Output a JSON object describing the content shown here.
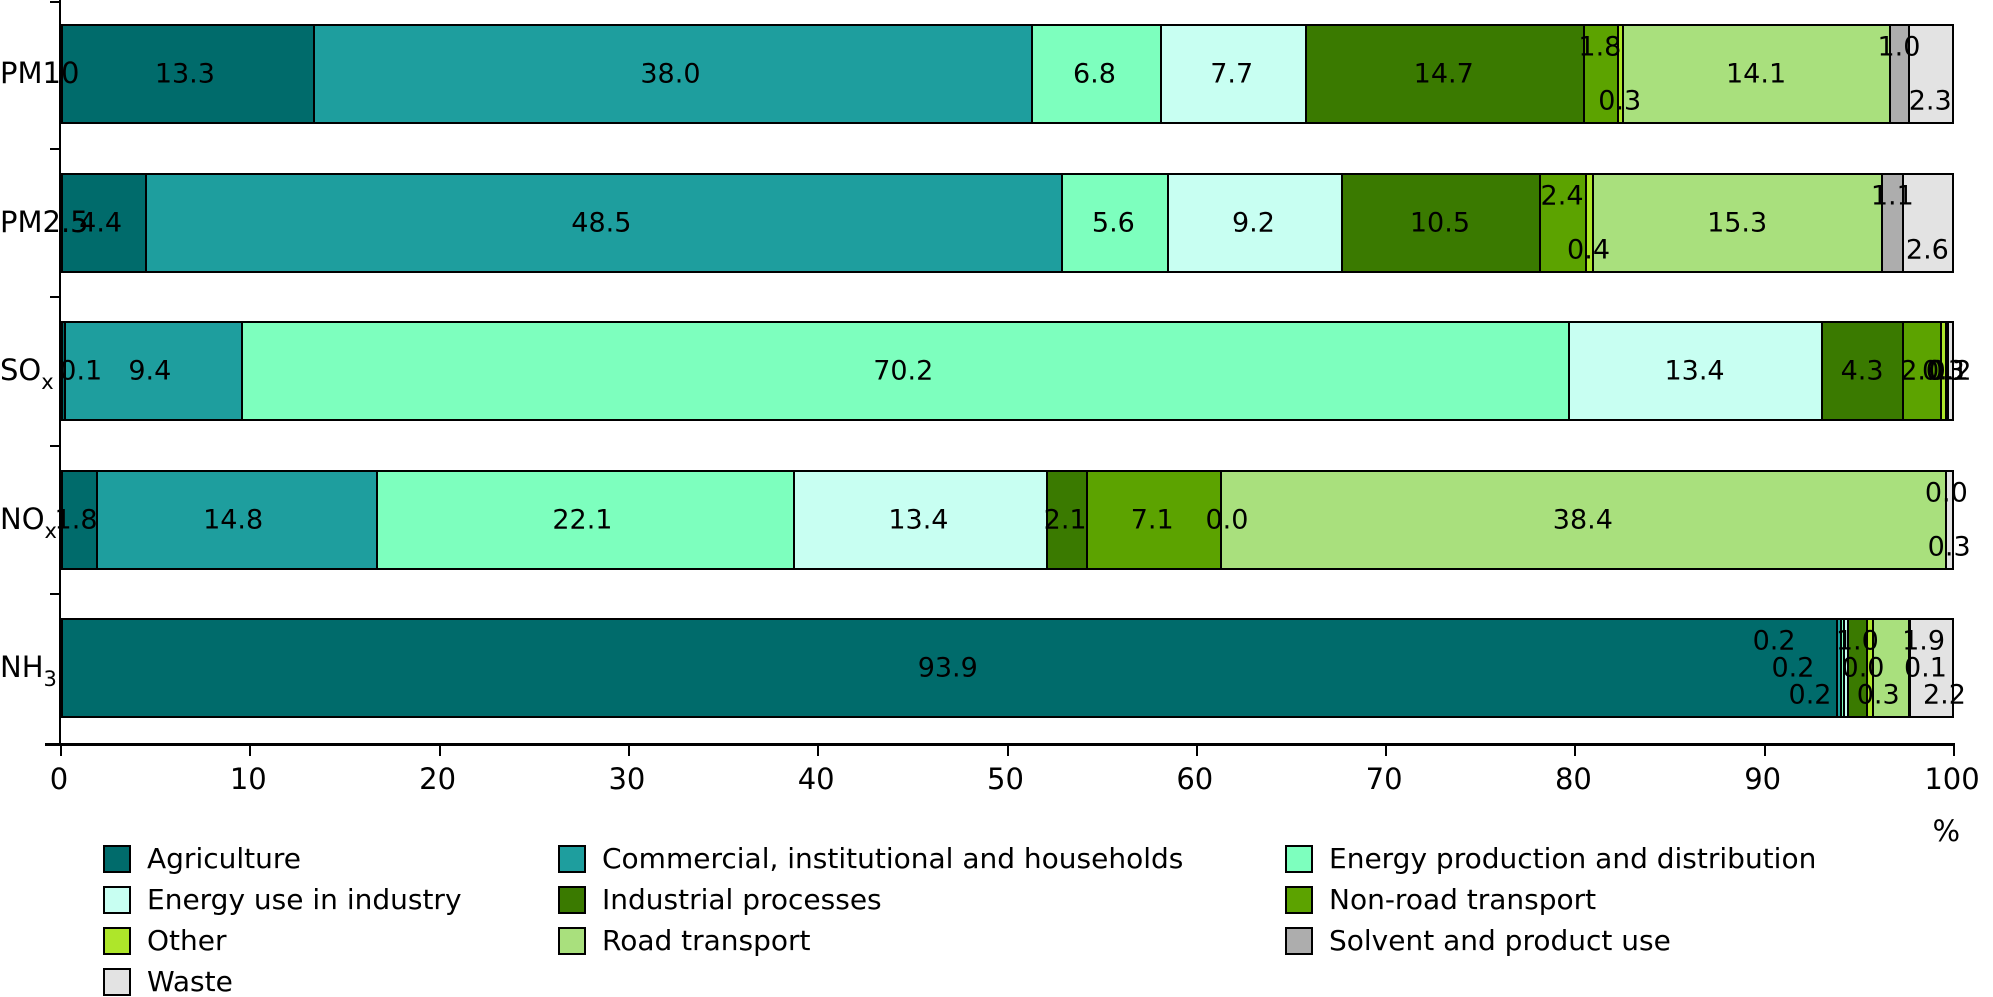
{
  "axis": {
    "unit": "%",
    "ticks": [
      0,
      10,
      20,
      30,
      40,
      50,
      60,
      70,
      80,
      90,
      100
    ],
    "xlim": [
      0,
      100
    ]
  },
  "chart_data": {
    "type": "bar",
    "stacked": true,
    "orientation": "horizontal",
    "unit": "%",
    "xlim": [
      0,
      100
    ],
    "grid": false,
    "legend_position": "bottom",
    "categories": [
      {
        "main": "PM10",
        "sub": ""
      },
      {
        "main": "PM2.5",
        "sub": ""
      },
      {
        "main": "SO",
        "sub": "x"
      },
      {
        "main": "NO",
        "sub": "x"
      },
      {
        "main": "NH",
        "sub": "3"
      }
    ],
    "series": [
      {
        "name": "Agriculture",
        "color": "#006b6b",
        "values": [
          13.3,
          4.4,
          0.1,
          1.8,
          93.9
        ]
      },
      {
        "name": "Commercial, institutional and households",
        "color": "#1e9e9e",
        "values": [
          38.0,
          48.5,
          9.4,
          14.8,
          0.2
        ]
      },
      {
        "name": "Energy production and distribution",
        "color": "#7dffbe",
        "values": [
          6.8,
          5.6,
          70.2,
          22.1,
          0.2
        ]
      },
      {
        "name": "Energy use in industry",
        "color": "#c8fff2",
        "values": [
          7.7,
          9.2,
          13.4,
          13.4,
          0.2
        ]
      },
      {
        "name": "Industrial processes",
        "color": "#3a7a00",
        "values": [
          14.7,
          10.5,
          4.3,
          2.1,
          1.0
        ]
      },
      {
        "name": "Non-road transport",
        "color": "#5ca300",
        "values": [
          1.8,
          2.4,
          2.0,
          7.1,
          0.0
        ]
      },
      {
        "name": "Other",
        "color": "#aee62a",
        "values": [
          0.3,
          0.4,
          0.3,
          0.0,
          0.3
        ]
      },
      {
        "name": "Road transport",
        "color": "#a9e07d",
        "values": [
          14.1,
          15.3,
          0.1,
          38.4,
          1.9
        ]
      },
      {
        "name": "Solvent and product use",
        "color": "#adadad",
        "values": [
          1.0,
          1.1,
          0.0,
          0.0,
          0.1
        ]
      },
      {
        "name": "Waste",
        "color": "#e3e3e3",
        "values": [
          2.3,
          2.6,
          0.2,
          0.3,
          2.2
        ]
      }
    ],
    "value_format": "one_decimal",
    "label_layout": [
      [
        {
          "r": 0
        },
        {
          "r": 0
        },
        {
          "r": 0
        },
        {
          "r": 0
        },
        {
          "r": 0
        },
        {
          "r": -1
        },
        {
          "r": 1
        },
        {
          "r": 0
        },
        {
          "r": -1
        },
        {
          "r": 1
        }
      ],
      [
        {
          "r": 0
        },
        {
          "r": 0
        },
        {
          "r": 0
        },
        {
          "r": 0
        },
        {
          "r": 0
        },
        {
          "r": -1
        },
        {
          "r": 1
        },
        {
          "r": 0
        },
        {
          "r": -1
        },
        {
          "r": 1
        }
      ],
      [
        {
          "r": 0,
          "dx": 1.1
        },
        {
          "r": 0
        },
        {
          "r": 0
        },
        {
          "r": 0
        },
        {
          "r": 0
        },
        {
          "r": 0
        },
        {
          "r": 0
        },
        {
          "r": 0
        },
        {
          "hide": true
        },
        {
          "r": 0
        }
      ],
      [
        {
          "r": 0
        },
        {
          "r": 0
        },
        {
          "r": 0
        },
        {
          "r": 0
        },
        {
          "r": 0
        },
        {
          "r": 0
        },
        {
          "r": 0,
          "dx": 0.4
        },
        {
          "r": 0
        },
        {
          "r": -1
        },
        {
          "r": 1
        }
      ],
      [
        {
          "r": 0
        },
        {
          "r": -1,
          "dx": -3.4
        },
        {
          "r": 0,
          "dx": -2.6
        },
        {
          "r": 1,
          "dx": -1.9
        },
        {
          "r": -1
        },
        {
          "r": 0,
          "dx": -0.2
        },
        {
          "r": 1,
          "dx": 0.45
        },
        {
          "r": -1,
          "dx": 1.75
        },
        {
          "r": 0,
          "dx": 0.85
        },
        {
          "r": 1,
          "dx": 0.7
        }
      ]
    ]
  },
  "legend": {
    "columns": [
      [
        0,
        3,
        6,
        9
      ],
      [
        1,
        4,
        7
      ],
      [
        2,
        5,
        8
      ]
    ]
  }
}
